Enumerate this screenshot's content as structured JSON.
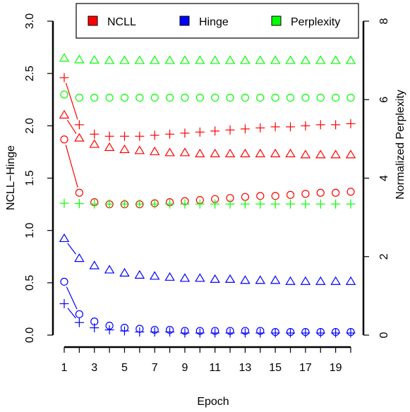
{
  "chart_data": {
    "type": "scatter",
    "xlabel": "Epoch",
    "ylabel": "NCLL−Hinge",
    "y2label": "Normalized Perplexity",
    "xlim": [
      1,
      20
    ],
    "ylim": [
      0,
      3
    ],
    "y2lim": [
      0,
      8
    ],
    "x_ticks": [
      1,
      2,
      3,
      4,
      5,
      6,
      7,
      8,
      9,
      10,
      11,
      12,
      13,
      14,
      15,
      16,
      17,
      18,
      19,
      20
    ],
    "x_tick_labels": [
      "1",
      "",
      "3",
      "",
      "5",
      "",
      "7",
      "",
      "9",
      "",
      "11",
      "",
      "13",
      "",
      "15",
      "",
      "17",
      "",
      "19",
      ""
    ],
    "y_ticks": [
      0,
      0.5,
      1,
      1.5,
      2,
      2.5,
      3
    ],
    "y_tick_labels": [
      "0.0",
      "0.5",
      "1.0",
      "1.5",
      "2.0",
      "2.5",
      "3.0"
    ],
    "y2_ticks": [
      0,
      2,
      4,
      6,
      8
    ],
    "y2_tick_labels": [
      "0",
      "2",
      "4",
      "6",
      "8"
    ],
    "legend": {
      "placement": "top",
      "entries": [
        {
          "label": "NCLL",
          "color": "#ff0000"
        },
        {
          "label": "Hinge",
          "color": "#0000ff"
        },
        {
          "label": "Perplexity",
          "color": "#00ff00"
        }
      ]
    },
    "x": [
      1,
      2,
      3,
      4,
      5,
      6,
      7,
      8,
      9,
      10,
      11,
      12,
      13,
      14,
      15,
      16,
      17,
      18,
      19,
      20
    ],
    "series": [
      {
        "group": "NCLL",
        "color": "#ff0000",
        "marker": "triangle",
        "axis": "left",
        "connect_first": true,
        "values": [
          2.1,
          1.88,
          1.82,
          1.79,
          1.77,
          1.76,
          1.75,
          1.74,
          1.74,
          1.73,
          1.73,
          1.73,
          1.73,
          1.73,
          1.73,
          1.73,
          1.72,
          1.72,
          1.72,
          1.72
        ]
      },
      {
        "group": "NCLL",
        "color": "#ff0000",
        "marker": "plus",
        "axis": "left",
        "connect_first": true,
        "values": [
          2.46,
          2.01,
          1.92,
          1.9,
          1.9,
          1.9,
          1.91,
          1.92,
          1.93,
          1.94,
          1.95,
          1.96,
          1.97,
          1.98,
          1.99,
          1.99,
          2.0,
          2.01,
          2.01,
          2.02
        ]
      },
      {
        "group": "NCLL",
        "color": "#ff0000",
        "marker": "circle",
        "axis": "left",
        "connect_first": true,
        "values": [
          1.87,
          1.36,
          1.27,
          1.25,
          1.25,
          1.25,
          1.26,
          1.27,
          1.28,
          1.29,
          1.3,
          1.31,
          1.32,
          1.33,
          1.33,
          1.34,
          1.35,
          1.36,
          1.36,
          1.37
        ]
      },
      {
        "group": "Hinge",
        "color": "#0000ff",
        "marker": "triangle",
        "axis": "left",
        "connect_first": true,
        "values": [
          0.92,
          0.73,
          0.66,
          0.62,
          0.59,
          0.57,
          0.56,
          0.55,
          0.54,
          0.54,
          0.53,
          0.53,
          0.52,
          0.52,
          0.52,
          0.51,
          0.51,
          0.51,
          0.51,
          0.51
        ]
      },
      {
        "group": "Hinge",
        "color": "#0000ff",
        "marker": "circle",
        "axis": "left",
        "connect_first": true,
        "values": [
          0.51,
          0.2,
          0.13,
          0.09,
          0.07,
          0.06,
          0.05,
          0.05,
          0.04,
          0.04,
          0.04,
          0.04,
          0.04,
          0.04,
          0.03,
          0.03,
          0.03,
          0.03,
          0.03,
          0.03
        ]
      },
      {
        "group": "Hinge",
        "color": "#0000ff",
        "marker": "plus",
        "axis": "left",
        "connect_first": true,
        "values": [
          0.3,
          0.12,
          0.07,
          0.05,
          0.04,
          0.03,
          0.03,
          0.03,
          0.02,
          0.02,
          0.02,
          0.02,
          0.02,
          0.02,
          0.02,
          0.02,
          0.02,
          0.02,
          0.02,
          0.02
        ]
      },
      {
        "group": "Perplexity",
        "color": "#00ff00",
        "marker": "triangle",
        "axis": "right",
        "connect_first": false,
        "values": [
          7.05,
          7.01,
          7.0,
          6.99,
          6.99,
          6.99,
          6.99,
          6.99,
          6.99,
          6.99,
          6.99,
          6.99,
          6.99,
          6.99,
          6.99,
          6.99,
          6.99,
          6.99,
          6.99,
          6.99
        ]
      },
      {
        "group": "Perplexity",
        "color": "#00ff00",
        "marker": "circle",
        "axis": "right",
        "connect_first": false,
        "values": [
          6.13,
          6.05,
          6.05,
          6.05,
          6.05,
          6.05,
          6.05,
          6.05,
          6.05,
          6.05,
          6.05,
          6.05,
          6.05,
          6.05,
          6.05,
          6.05,
          6.05,
          6.05,
          6.05,
          6.05
        ]
      },
      {
        "group": "Perplexity",
        "color": "#00ff00",
        "marker": "plus",
        "axis": "right",
        "connect_first": false,
        "values": [
          3.36,
          3.35,
          3.34,
          3.34,
          3.34,
          3.34,
          3.34,
          3.34,
          3.34,
          3.34,
          3.34,
          3.34,
          3.34,
          3.34,
          3.34,
          3.34,
          3.34,
          3.34,
          3.34,
          3.34
        ]
      }
    ]
  }
}
